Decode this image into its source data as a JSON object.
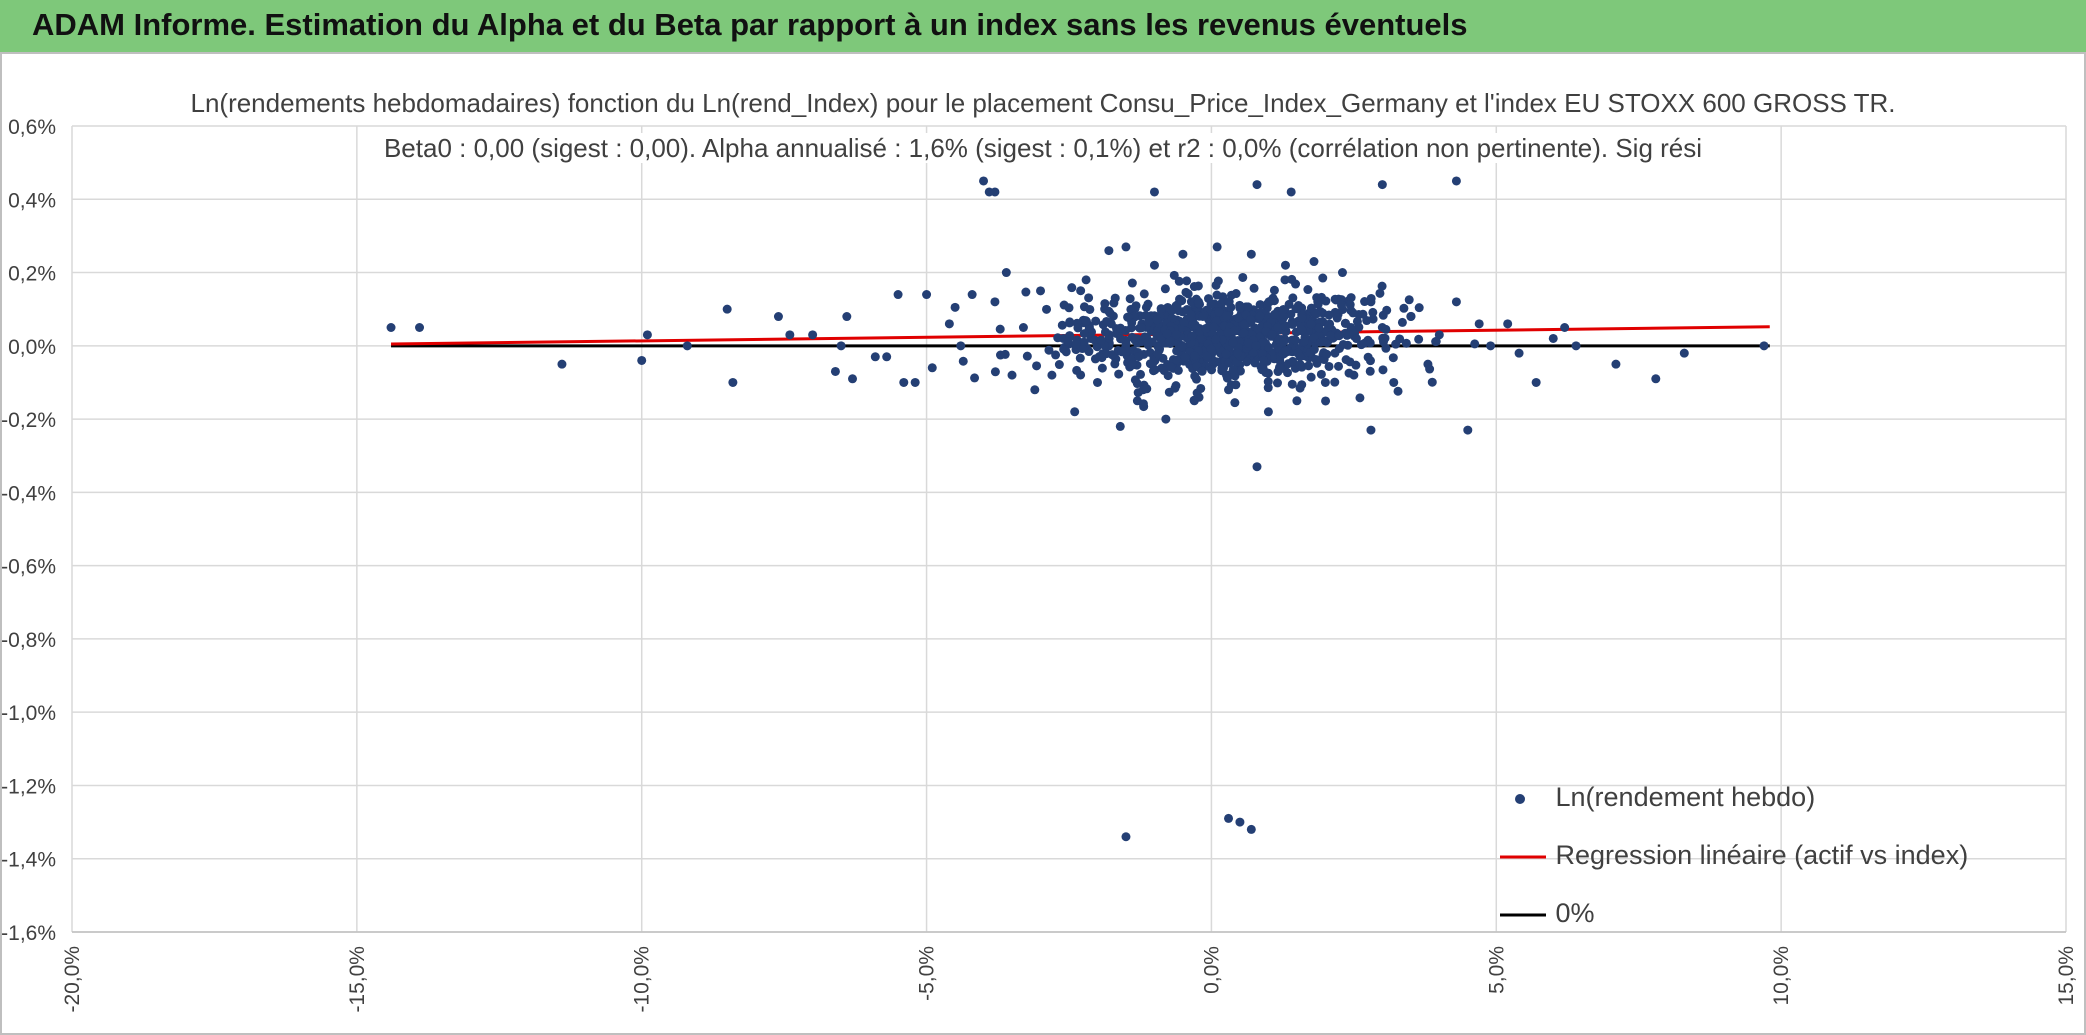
{
  "header": {
    "title": "ADAM Informe. Estimation du Alpha et du Beta par rapport à un index sans les revenus éventuels"
  },
  "colors": {
    "header_bg": "#7ec87a",
    "points": "#243f74",
    "regression": "#e00000",
    "zero_line": "#000000",
    "grid": "#d9d9d9",
    "corner_accent": "#f0b400"
  },
  "chart_data": {
    "type": "scatter",
    "title_line1": "Ln(rendements hebdomadaires) fonction du Ln(rend_Index) pour le placement Consu_Price_Index_Germany et l'index EU STOXX 600 GROSS TR.",
    "title_line2": "Beta0 : 0,00 (sigest : 0,00). Alpha annualisé : 1,6% (sigest : 0,1%) et r2 : 0,0% (corrélation non pertinente). Sig rési",
    "xlim": [
      -20,
      15
    ],
    "ylim": [
      -1.6,
      0.6
    ],
    "x_ticks": [
      -20,
      -15,
      -10,
      -5,
      0,
      5,
      10,
      15
    ],
    "x_tick_labels": [
      "-20,0%",
      "-15,0%",
      "-10,0%",
      "-5,0%",
      "0,0%",
      "5,0%",
      "10,0%",
      "15,0%"
    ],
    "y_ticks": [
      0.6,
      0.4,
      0.2,
      0.0,
      -0.2,
      -0.4,
      -0.6,
      -0.8,
      -1.0,
      -1.2,
      -1.4,
      -1.6
    ],
    "y_tick_labels": [
      "0,6%",
      "0,4%",
      "0,2%",
      "0,0%",
      "-0,2%",
      "-0,4%",
      "-0,6%",
      "-0,8%",
      "-1,0%",
      "-1,2%",
      "-1,4%",
      "-1,6%"
    ],
    "grid": true,
    "legend_position": "bottom-right",
    "series": [
      {
        "name": "Ln(rendement hebdo)",
        "kind": "scatter",
        "points": [
          [
            -14.4,
            0.05
          ],
          [
            -13.9,
            0.05
          ],
          [
            -11.4,
            -0.05
          ],
          [
            -10.0,
            -0.04
          ],
          [
            -9.9,
            0.03
          ],
          [
            -9.2,
            0.0
          ],
          [
            -8.5,
            0.1
          ],
          [
            -8.4,
            -0.1
          ],
          [
            -7.6,
            0.08
          ],
          [
            -7.4,
            0.03
          ],
          [
            -7.0,
            0.03
          ],
          [
            -6.6,
            -0.07
          ],
          [
            -6.5,
            0.0
          ],
          [
            -6.4,
            0.08
          ],
          [
            -6.3,
            -0.09
          ],
          [
            -5.9,
            -0.03
          ],
          [
            -5.7,
            -0.03
          ],
          [
            -5.5,
            0.14
          ],
          [
            -5.4,
            -0.1
          ],
          [
            -5.2,
            -0.1
          ],
          [
            -5.0,
            0.14
          ],
          [
            -4.9,
            -0.06
          ],
          [
            -4.6,
            0.06
          ],
          [
            -4.4,
            0.0
          ],
          [
            -4.2,
            0.14
          ],
          [
            -3.8,
            0.12
          ],
          [
            -3.6,
            0.2
          ],
          [
            -3.5,
            -0.08
          ],
          [
            -3.3,
            0.05
          ],
          [
            -3.1,
            -0.12
          ],
          [
            -3.0,
            0.15
          ],
          [
            -2.8,
            -0.08
          ],
          [
            -2.6,
            0.02
          ],
          [
            -2.4,
            -0.18
          ],
          [
            -2.2,
            0.18
          ],
          [
            -2.0,
            -0.1
          ],
          [
            -1.8,
            0.26
          ],
          [
            -1.6,
            -0.22
          ],
          [
            -1.5,
            0.27
          ],
          [
            -1.3,
            -0.15
          ],
          [
            -1.0,
            0.22
          ],
          [
            -0.8,
            -0.2
          ],
          [
            -0.5,
            0.25
          ],
          [
            -0.3,
            -0.15
          ],
          [
            0.1,
            0.27
          ],
          [
            0.3,
            -0.12
          ],
          [
            0.7,
            0.25
          ],
          [
            0.8,
            -0.33
          ],
          [
            1.0,
            -0.18
          ],
          [
            1.3,
            0.22
          ],
          [
            1.5,
            -0.15
          ],
          [
            1.8,
            0.23
          ],
          [
            2.0,
            -0.1
          ],
          [
            2.3,
            0.2
          ],
          [
            2.5,
            -0.08
          ],
          [
            2.8,
            0.12
          ],
          [
            2.8,
            -0.23
          ],
          [
            3.0,
            0.05
          ],
          [
            3.2,
            -0.1
          ],
          [
            3.5,
            0.08
          ],
          [
            3.8,
            -0.05
          ],
          [
            4.0,
            0.03
          ],
          [
            4.3,
            0.12
          ],
          [
            4.5,
            -0.23
          ],
          [
            4.7,
            0.06
          ],
          [
            4.9,
            0.0
          ],
          [
            5.2,
            0.06
          ],
          [
            5.4,
            -0.02
          ],
          [
            5.7,
            -0.1
          ],
          [
            6.0,
            0.02
          ],
          [
            6.2,
            0.05
          ],
          [
            6.4,
            0.0
          ],
          [
            7.1,
            -0.05
          ],
          [
            7.8,
            -0.09
          ],
          [
            8.3,
            -0.02
          ],
          [
            9.7,
            0.0
          ],
          [
            -4.0,
            0.45
          ],
          [
            -3.9,
            0.42
          ],
          [
            -3.8,
            0.42
          ],
          [
            -1.0,
            0.42
          ],
          [
            0.8,
            0.44
          ],
          [
            1.4,
            0.42
          ],
          [
            3.0,
            0.44
          ],
          [
            4.3,
            0.45
          ],
          [
            -1.5,
            -1.34
          ],
          [
            0.3,
            -1.29
          ],
          [
            0.5,
            -1.3
          ],
          [
            0.7,
            -1.32
          ]
        ]
      },
      {
        "name": "Regression linéaire (actif vs index)",
        "kind": "line",
        "points": [
          [
            -14.4,
            0.005
          ],
          [
            9.8,
            0.052
          ]
        ]
      },
      {
        "name": "0%",
        "kind": "line",
        "points": [
          [
            -14.4,
            0.0
          ],
          [
            9.8,
            0.0
          ]
        ]
      }
    ]
  }
}
